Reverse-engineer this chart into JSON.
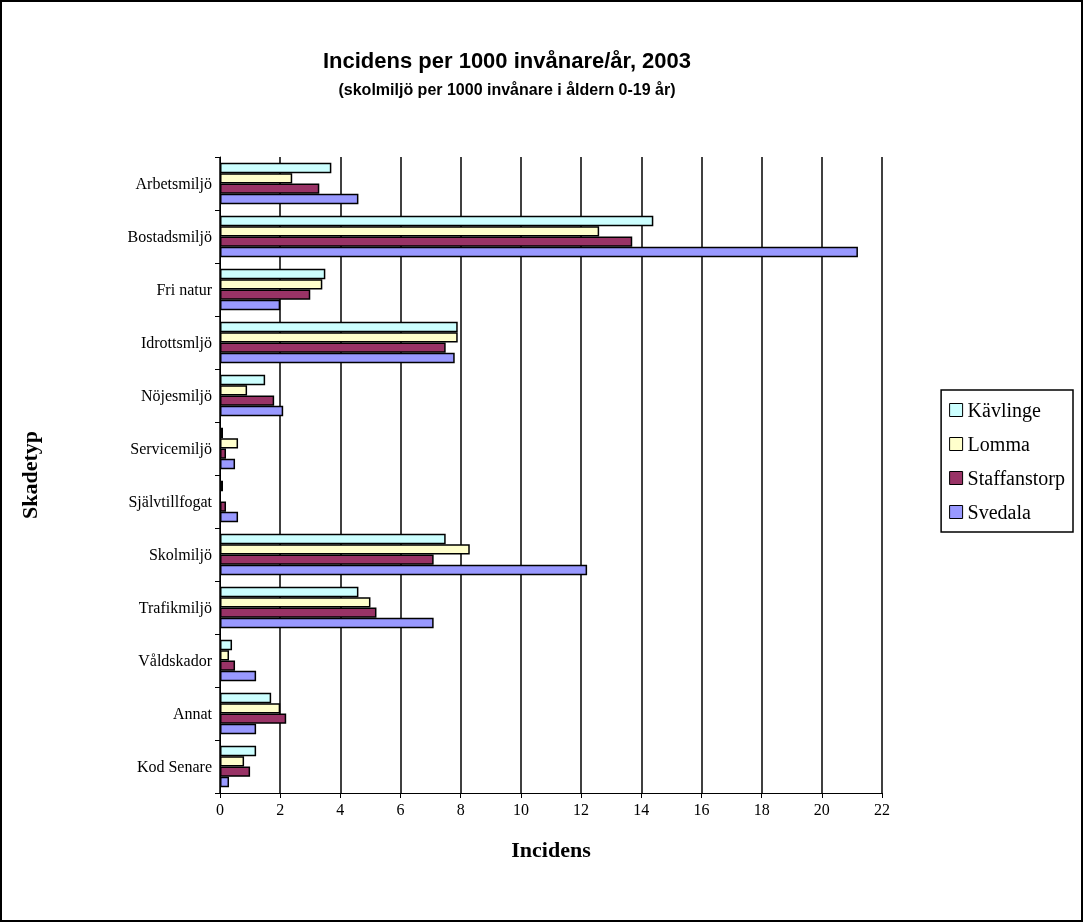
{
  "chart_data": {
    "type": "bar",
    "orientation": "horizontal",
    "title": "Incidens per 1000 invånare/år, 2003",
    "subtitle": "(skolmiljö per 1000 invånare i åldern 0-19 år)",
    "xlabel": "Incidens",
    "ylabel": "Skadetyp",
    "categories": [
      "Arbetsmiljö",
      "Bostadsmiljö",
      "Fri natur",
      "Idrottsmljö",
      "Nöjesmiljö",
      "Servicemiljö",
      "Självtillfogat",
      "Skolmiljö",
      "Trafikmiljö",
      "Våldskador",
      "Annat",
      "Kod Senare"
    ],
    "series": [
      {
        "name": "Kävlinge",
        "color": "#ccffff",
        "values": [
          3.7,
          14.4,
          3.5,
          7.9,
          1.5,
          0.1,
          0.1,
          7.5,
          4.6,
          0.4,
          1.7,
          1.2
        ]
      },
      {
        "name": "Lomma",
        "color": "#ffffcc",
        "values": [
          2.4,
          12.6,
          3.4,
          7.9,
          0.9,
          0.6,
          null,
          8.3,
          5.0,
          0.3,
          2.0,
          0.8
        ]
      },
      {
        "name": "Staffanstorp",
        "color": "#993366",
        "values": [
          3.3,
          13.7,
          3.0,
          7.5,
          1.8,
          0.2,
          0.2,
          7.1,
          5.2,
          0.5,
          2.2,
          1.0
        ]
      },
      {
        "name": "Svedala",
        "color": "#9999ff",
        "values": [
          4.6,
          21.2,
          2.0,
          7.8,
          2.1,
          0.5,
          0.6,
          12.2,
          7.1,
          1.2,
          1.2,
          0.3
        ]
      }
    ],
    "xlim": [
      0,
      22
    ],
    "xticks": [
      0,
      2,
      4,
      6,
      8,
      10,
      12,
      14,
      16,
      18,
      20,
      22
    ],
    "grid": "x",
    "legend": "right"
  }
}
